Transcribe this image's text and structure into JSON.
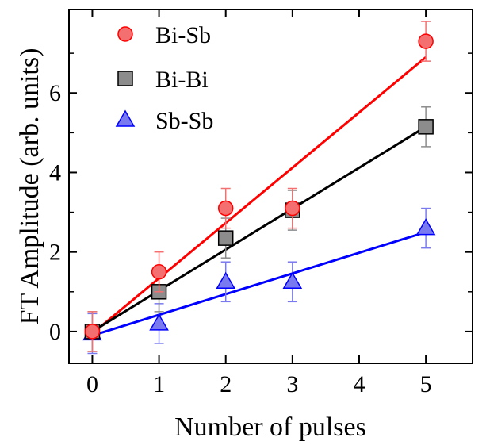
{
  "chart_data": {
    "type": "scatter",
    "xlabel": "Number of pulses",
    "ylabel": "FT Amplitude (arb. units)",
    "xlim": [
      -0.35,
      5.7
    ],
    "ylim": [
      -0.8,
      8.1
    ],
    "xticks": [
      0,
      1,
      2,
      3,
      4,
      5
    ],
    "yticks": [
      0,
      2,
      4,
      6
    ],
    "grid": false,
    "legend_position": "top-left",
    "series": [
      {
        "name": "Bi-Sb",
        "marker": "circle",
        "color": "#ff0000",
        "fill": "#f47070",
        "x": [
          0,
          1,
          2,
          3,
          5
        ],
        "y": [
          0.0,
          1.5,
          3.1,
          3.1,
          7.3
        ],
        "err": [
          0.5,
          0.5,
          0.5,
          0.5,
          0.5
        ],
        "fit": {
          "x": [
            0,
            5
          ],
          "y": [
            -0.05,
            6.9
          ]
        }
      },
      {
        "name": "Bi-Bi",
        "marker": "square",
        "color": "#000000",
        "fill": "#8c8c8c",
        "x": [
          0,
          1,
          2,
          3,
          5
        ],
        "y": [
          0.0,
          1.0,
          2.35,
          3.05,
          5.15
        ],
        "err": [
          0.5,
          0.5,
          0.5,
          0.5,
          0.5
        ],
        "fit": {
          "x": [
            0,
            5
          ],
          "y": [
            0.0,
            5.15
          ]
        }
      },
      {
        "name": "Sb-Sb",
        "marker": "triangle",
        "color": "#0000ff",
        "fill": "#7a7af0",
        "x": [
          0,
          1,
          2,
          3,
          5
        ],
        "y": [
          -0.05,
          0.2,
          1.25,
          1.25,
          2.6
        ],
        "err": [
          0.5,
          0.5,
          0.5,
          0.5,
          0.5
        ],
        "fit": {
          "x": [
            0,
            5
          ],
          "y": [
            -0.1,
            2.5
          ]
        }
      }
    ]
  }
}
